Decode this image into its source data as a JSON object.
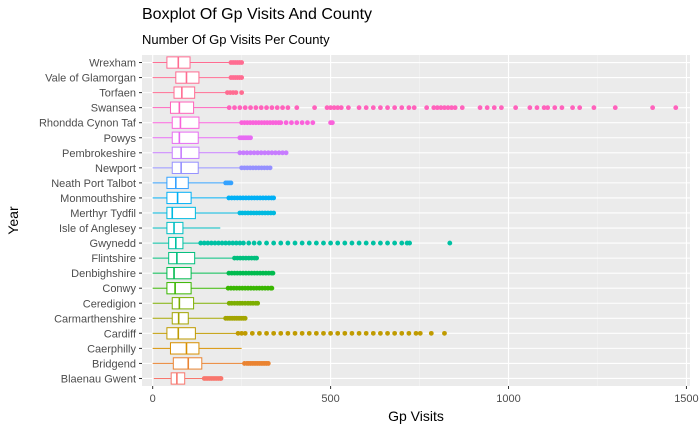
{
  "chart_data": {
    "type": "boxplot",
    "title": "Boxplot Of Gp Visits And County",
    "subtitle": "Number Of Gp Visits Per County",
    "xlabel": "Gp Visits",
    "ylabel": "Year",
    "xlim": [
      -30,
      1510
    ],
    "x_ticks": [
      0,
      500,
      1000,
      1500
    ],
    "grid": true,
    "legend": "none",
    "categories": [
      "Blaenau Gwent",
      "Bridgend",
      "Caerphilly",
      "Cardiff",
      "Carmarthenshire",
      "Ceredigion",
      "Conwy",
      "Denbighshire",
      "Flintshire",
      "Gwynedd",
      "Isle of Anglesey",
      "Merthyr Tydfil",
      "Monmouthshire",
      "Neath Port Talbot",
      "Newport",
      "Pembrokeshire",
      "Powys",
      "Rhondda Cynon Taf",
      "Swansea",
      "Torfaen",
      "Vale of Glamorgan",
      "Wrexham"
    ],
    "series": [
      {
        "category": "Blaenau Gwent",
        "color": "#F8766D",
        "min": 3,
        "q1": 52,
        "median": 68,
        "q3": 90,
        "max": 140,
        "outliers": [
          145,
          150,
          155,
          160,
          165,
          170,
          175,
          180,
          185,
          190,
          192
        ]
      },
      {
        "category": "Bridgend",
        "color": "#EA8331",
        "min": 0,
        "q1": 58,
        "median": 100,
        "q3": 138,
        "max": 255,
        "outliers": [
          258,
          265,
          270,
          275,
          280,
          285,
          290,
          295,
          300,
          305,
          310,
          315,
          320,
          325
        ]
      },
      {
        "category": "Caerphilly",
        "color": "#D89000",
        "min": 0,
        "q1": 50,
        "median": 95,
        "q3": 130,
        "max": 250,
        "outliers": []
      },
      {
        "category": "Cardiff",
        "color": "#C09B00",
        "min": 0,
        "q1": 40,
        "median": 72,
        "q3": 120,
        "max": 235,
        "outliers": [
          240,
          250,
          260,
          280,
          300,
          320,
          340,
          360,
          380,
          400,
          420,
          440,
          460,
          480,
          500,
          520,
          540,
          560,
          580,
          600,
          620,
          640,
          660,
          680,
          700,
          720,
          740,
          752,
          783,
          820
        ]
      },
      {
        "category": "Carmarthenshire",
        "color": "#A3A500",
        "min": 0,
        "q1": 55,
        "median": 73,
        "q3": 100,
        "max": 200,
        "outliers": [
          205,
          210,
          215,
          220,
          225,
          230,
          235,
          240,
          245,
          250,
          255,
          260
        ]
      },
      {
        "category": "Ceredigion",
        "color": "#7CAE00",
        "min": 0,
        "q1": 55,
        "median": 75,
        "q3": 115,
        "max": 210,
        "outliers": [
          215,
          222,
          230,
          238,
          245,
          252,
          260,
          268,
          275,
          282,
          290,
          295
        ]
      },
      {
        "category": "Conwy",
        "color": "#39B600",
        "min": 0,
        "q1": 40,
        "median": 63,
        "q3": 108,
        "max": 208,
        "outliers": [
          212,
          220,
          228,
          236,
          244,
          252,
          260,
          268,
          276,
          284,
          292,
          300,
          308,
          316,
          324,
          332,
          335
        ]
      },
      {
        "category": "Denbighshire",
        "color": "#00BB4E",
        "min": 0,
        "q1": 40,
        "median": 60,
        "q3": 108,
        "max": 210,
        "outliers": [
          214,
          222,
          230,
          238,
          246,
          254,
          262,
          270,
          278,
          286,
          294,
          302,
          310,
          318,
          326,
          334,
          338
        ]
      },
      {
        "category": "Flintshire",
        "color": "#00BF7D",
        "min": 0,
        "q1": 45,
        "median": 68,
        "q3": 118,
        "max": 225,
        "outliers": [
          230,
          238,
          246,
          254,
          262,
          270,
          278,
          286,
          292
        ]
      },
      {
        "category": "Gwynedd",
        "color": "#00C1A3",
        "min": 0,
        "q1": 45,
        "median": 65,
        "q3": 85,
        "max": 130,
        "outliers": [
          135,
          145,
          155,
          165,
          175,
          185,
          195,
          205,
          215,
          225,
          235,
          245,
          255,
          270,
          285,
          300,
          320,
          340,
          360,
          380,
          400,
          420,
          440,
          460,
          480,
          500,
          520,
          540,
          560,
          580,
          600,
          620,
          640,
          660,
          680,
          700,
          715,
          722,
          835
        ]
      },
      {
        "category": "Isle of Anglesey",
        "color": "#00BFC4",
        "min": 0,
        "q1": 40,
        "median": 60,
        "q3": 85,
        "max": 190,
        "outliers": []
      },
      {
        "category": "Merthyr Tydfil",
        "color": "#00BAE0",
        "min": 0,
        "q1": 40,
        "median": 55,
        "q3": 120,
        "max": 240,
        "outliers": [
          245,
          252,
          260,
          268,
          276,
          284,
          292,
          300,
          308,
          316,
          324,
          332,
          340
        ]
      },
      {
        "category": "Monmouthshire",
        "color": "#00B0F6",
        "min": 0,
        "q1": 40,
        "median": 70,
        "q3": 108,
        "max": 210,
        "outliers": [
          214,
          222,
          230,
          238,
          246,
          254,
          262,
          270,
          278,
          286,
          294,
          302,
          310,
          318,
          326,
          334,
          340
        ]
      },
      {
        "category": "Neath Port Talbot",
        "color": "#35A2FF",
        "min": 0,
        "q1": 40,
        "median": 65,
        "q3": 100,
        "max": 200,
        "outliers": [
          205,
          210,
          215,
          220
        ]
      },
      {
        "category": "Newport",
        "color": "#9590FF",
        "min": 0,
        "q1": 55,
        "median": 80,
        "q3": 128,
        "max": 245,
        "outliers": [
          250,
          258,
          266,
          274,
          282,
          290,
          298,
          306,
          314,
          322,
          330
        ]
      },
      {
        "category": "Pembrokeshire",
        "color": "#C77CFF",
        "min": 0,
        "q1": 55,
        "median": 80,
        "q3": 130,
        "max": 240,
        "outliers": [
          245,
          255,
          265,
          275,
          285,
          295,
          305,
          315,
          325,
          335,
          345,
          355,
          365,
          375
        ]
      },
      {
        "category": "Powys",
        "color": "#E76BF3",
        "min": 0,
        "q1": 55,
        "median": 75,
        "q3": 128,
        "max": 240,
        "outliers": [
          245,
          250,
          255,
          260,
          265,
          270,
          275
        ]
      },
      {
        "category": "Rhondda Cynon Taf",
        "color": "#FA62DB",
        "min": 0,
        "q1": 55,
        "median": 78,
        "q3": 130,
        "max": 245,
        "outliers": [
          250,
          258,
          266,
          274,
          282,
          290,
          298,
          306,
          314,
          322,
          330,
          338,
          346,
          354,
          360,
          375,
          390,
          405,
          420,
          435,
          450,
          500,
          505
        ]
      },
      {
        "category": "Swansea",
        "color": "#FF62BC",
        "min": 0,
        "q1": 50,
        "median": 75,
        "q3": 115,
        "max": 210,
        "outliers": [
          215,
          230,
          245,
          260,
          275,
          290,
          305,
          320,
          335,
          350,
          365,
          380,
          405,
          455,
          490,
          500,
          510,
          520,
          530,
          550,
          580,
          600,
          620,
          640,
          660,
          680,
          700,
          720,
          735,
          770,
          790,
          800,
          810,
          820,
          830,
          840,
          850,
          870,
          920,
          940,
          960,
          980,
          1020,
          1060,
          1080,
          1100,
          1110,
          1130,
          1150,
          1180,
          1200,
          1240,
          1300,
          1405,
          1470
        ]
      },
      {
        "category": "Torfaen",
        "color": "#FF6C91",
        "min": 0,
        "q1": 60,
        "median": 82,
        "q3": 118,
        "max": 205,
        "outliers": [
          210,
          218,
          226,
          234,
          250
        ]
      },
      {
        "category": "Vale of Glamorgan",
        "color": "#FF6C91",
        "min": 0,
        "q1": 65,
        "median": 95,
        "q3": 130,
        "max": 215,
        "outliers": [
          220,
          226,
          232,
          238,
          244,
          250
        ]
      },
      {
        "category": "Wrexham",
        "color": "#FF6C91",
        "min": 0,
        "q1": 40,
        "median": 72,
        "q3": 105,
        "max": 215,
        "outliers": [
          220,
          226,
          232,
          238,
          244,
          250
        ]
      }
    ]
  }
}
